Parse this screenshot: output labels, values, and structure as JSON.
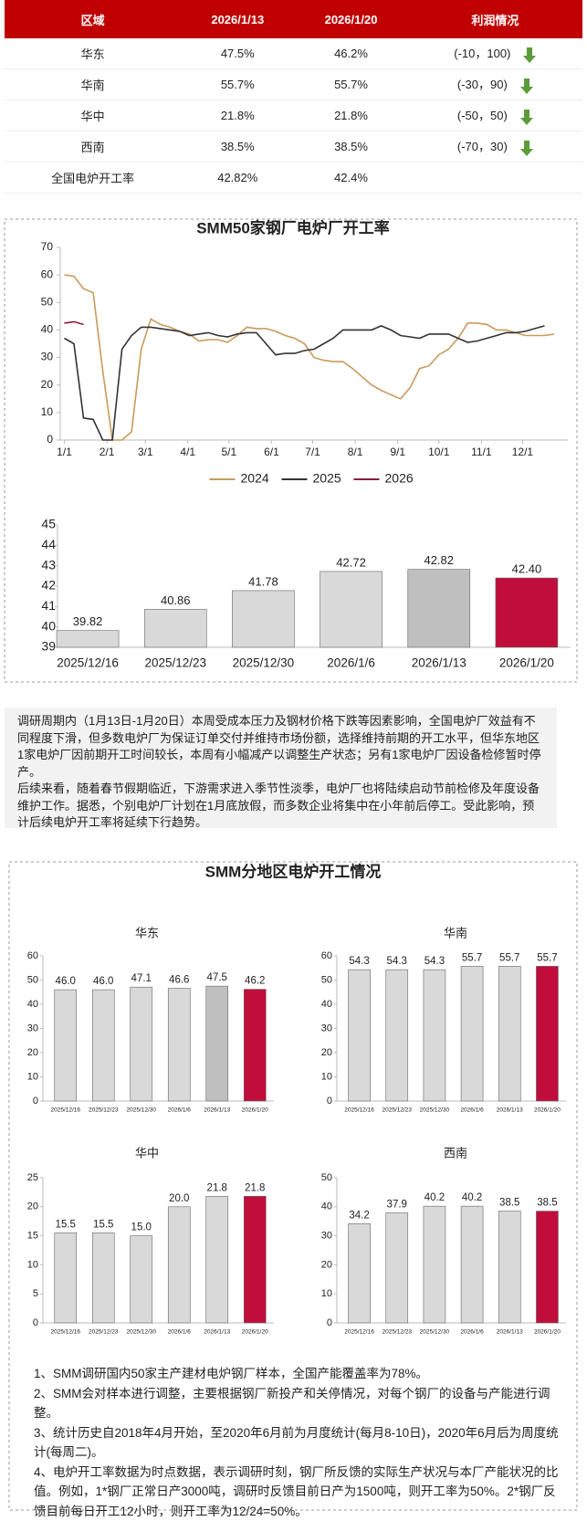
{
  "table": {
    "header": [
      "区域",
      "2026/1/13",
      "2026/1/20",
      "利润情况"
    ],
    "rows": [
      [
        "华东",
        "47.5%",
        "46.2%",
        "(-10，100)"
      ],
      [
        "华南",
        "55.7%",
        "55.7%",
        "(-30，90)"
      ],
      [
        "华中",
        "21.8%",
        "21.8%",
        "(-50，50)"
      ],
      [
        "西南",
        "38.5%",
        "38.5%",
        "(-70，30)"
      ],
      [
        "全国电炉开工率",
        "42.82%",
        "42.4%"
      ]
    ]
  },
  "chart_data": [
    {
      "type": "line",
      "title": "SMM50家钢厂电炉厂开工率",
      "xlim": [
        -3,
        367
      ],
      "xticks": [
        {
          "value": 0,
          "label": "1/1"
        },
        {
          "value": 31,
          "label": "2/1"
        },
        {
          "value": 59,
          "label": "3/1"
        },
        {
          "value": 90,
          "label": "4/1"
        },
        {
          "value": 120,
          "label": "5/1"
        },
        {
          "value": 151,
          "label": "6/1"
        },
        {
          "value": 181,
          "label": "7/1"
        },
        {
          "value": 212,
          "label": "8/1"
        },
        {
          "value": 243,
          "label": "9/1"
        },
        {
          "value": 273,
          "label": "10/1"
        },
        {
          "value": 304,
          "label": "11/1"
        },
        {
          "value": 334,
          "label": "12/1"
        }
      ],
      "ylim": [
        0,
        70
      ],
      "yticks": [
        0,
        10,
        20,
        30,
        40,
        50,
        60,
        70
      ],
      "legend": "bottom",
      "series": [
        {
          "name": "2024",
          "color": "#c99a5b",
          "x": [
            0,
            7,
            14,
            21,
            28,
            35,
            42,
            49,
            56,
            63,
            70,
            77,
            84,
            91,
            98,
            105,
            112,
            119,
            126,
            133,
            140,
            147,
            154,
            161,
            168,
            175,
            182,
            189,
            196,
            203,
            210,
            217,
            224,
            231,
            238,
            245,
            252,
            259,
            266,
            273,
            280,
            287,
            294,
            301,
            308,
            315,
            322,
            329,
            336,
            343,
            350,
            357
          ],
          "values": [
            60,
            59.5,
            55,
            53.5,
            25,
            0,
            0,
            3,
            33,
            44,
            42,
            41,
            39.5,
            38.5,
            36,
            36.5,
            36.5,
            35.5,
            38,
            41,
            40.5,
            40.5,
            39.5,
            38,
            37,
            35,
            30,
            29,
            28.5,
            28.5,
            26,
            23,
            20,
            18,
            16.5,
            15,
            19,
            26,
            27,
            31,
            33,
            37,
            42.5,
            42.5,
            42,
            40,
            40,
            39,
            38,
            38,
            38,
            38.5
          ]
        },
        {
          "name": "2025",
          "color": "#333333",
          "x": [
            0,
            7,
            14,
            21,
            28,
            35,
            42,
            49,
            56,
            63,
            70,
            77,
            84,
            91,
            98,
            105,
            112,
            119,
            126,
            133,
            140,
            147,
            154,
            161,
            168,
            175,
            182,
            189,
            196,
            203,
            210,
            217,
            224,
            231,
            238,
            245,
            252,
            259,
            266,
            273,
            280,
            287,
            294,
            301,
            308,
            315,
            322,
            329,
            336,
            343,
            350
          ],
          "values": [
            37,
            35,
            8,
            7.5,
            0,
            0,
            33,
            38,
            41,
            41,
            40.5,
            40,
            39.5,
            38,
            38.5,
            39,
            38,
            37.5,
            38.5,
            39,
            39,
            35,
            31,
            31.5,
            31.5,
            32.5,
            33,
            35,
            37,
            40,
            40,
            40,
            40,
            41.5,
            40,
            38,
            37.5,
            37,
            38.5,
            38.5,
            38.5,
            37,
            35.5,
            36,
            37,
            38,
            39,
            39,
            39.5,
            40.5,
            41.5
          ]
        },
        {
          "name": "2026",
          "color": "#8b1a3f",
          "x": [
            0,
            7,
            14
          ],
          "values": [
            42.5,
            43,
            42
          ]
        }
      ]
    },
    {
      "type": "bar",
      "categories": [
        "2025/12/16",
        "2025/12/23",
        "2025/12/30",
        "2026/1/6",
        "2026/1/13",
        "2026/1/20"
      ],
      "values": [
        39.82,
        40.86,
        41.78,
        42.72,
        42.82,
        42.4
      ],
      "value_labels": [
        "39.82",
        "40.86",
        "41.78",
        "42.72",
        "42.82",
        "42.40"
      ],
      "colors": [
        "#d9d9d9",
        "#d9d9d9",
        "#d9d9d9",
        "#d9d9d9",
        "#bfbfbf",
        "#c00d3c"
      ],
      "ylim": [
        39,
        45
      ],
      "yticks": [
        39,
        40,
        41,
        42,
        43,
        44,
        45
      ]
    },
    {
      "type": "bar",
      "title": "华东",
      "categories": [
        "2025/12/16",
        "2025/12/23",
        "2025/12/30",
        "2026/1/6",
        "2026/1/13",
        "2026/1/20"
      ],
      "values": [
        46,
        46,
        47.1,
        46.6,
        47.5,
        46.2
      ],
      "value_labels": [
        "46.0",
        "46.0",
        "47.1",
        "46.6",
        "47.5",
        "46.2"
      ],
      "colors": [
        "#d9d9d9",
        "#d9d9d9",
        "#d9d9d9",
        "#d9d9d9",
        "#bfbfbf",
        "#c00d3c"
      ],
      "ylim": [
        0,
        60
      ],
      "yticks": [
        0,
        10,
        20,
        30,
        40,
        50,
        60
      ]
    },
    {
      "type": "bar",
      "title": "华南",
      "categories": [
        "2025/12/16",
        "2025/12/23",
        "2025/12/30",
        "2026/1/6",
        "2026/1/13",
        "2026/1/20"
      ],
      "values": [
        54.3,
        54.3,
        54.3,
        55.7,
        55.7,
        55.7
      ],
      "colors": [
        "#d9d9d9",
        "#d9d9d9",
        "#d9d9d9",
        "#d9d9d9",
        "#d9d9d9",
        "#c00d3c"
      ],
      "ylim": [
        0,
        60
      ],
      "yticks": [
        0,
        10,
        20,
        30,
        40,
        50,
        60
      ]
    },
    {
      "type": "bar",
      "title": "华中",
      "categories": [
        "2025/12/16",
        "2025/12/23",
        "2025/12/30",
        "2026/1/6",
        "2026/1/13",
        "2026/1/20"
      ],
      "values": [
        15.5,
        15.5,
        15,
        20,
        21.8,
        21.8
      ],
      "value_labels": [
        "15.5",
        "15.5",
        "15.0",
        "20.0",
        "21.8",
        "21.8"
      ],
      "colors": [
        "#d9d9d9",
        "#d9d9d9",
        "#d9d9d9",
        "#d9d9d9",
        "#d9d9d9",
        "#c00d3c"
      ],
      "ylim": [
        0,
        25
      ],
      "yticks": [
        0,
        5,
        10,
        15,
        20,
        25
      ]
    },
    {
      "type": "bar",
      "title": "西南",
      "categories": [
        "2025/12/16",
        "2025/12/23",
        "2025/12/30",
        "2026/1/6",
        "2026/1/13",
        "2026/1/20"
      ],
      "values": [
        34.2,
        37.9,
        40.2,
        40.2,
        38.5,
        38.5
      ],
      "colors": [
        "#d9d9d9",
        "#d9d9d9",
        "#d9d9d9",
        "#d9d9d9",
        "#d9d9d9",
        "#c00d3c"
      ],
      "ylim": [
        0,
        50
      ],
      "yticks": [
        0,
        10,
        20,
        30,
        40,
        50
      ]
    }
  ],
  "commentary": [
    "调研周期内（1月13日-1月20日）本周受成本压力及钢材价格下跌等因素影响，全国电炉厂效益有不同程度下滑，但多数电炉厂为保证订单交付并维持市场份额，选择维持前期的开工水平，但华东地区1家电炉厂因前期开工时间较长，本周有小幅减产以调整生产状态；另有1家电炉厂因设备检修暂时停产。",
    "后续来看，随着春节假期临近，下游需求进入季节性淡季，电炉厂也将陆续启动节前检修及年度设备维护工作。据悉，个别电炉厂计划在1月底放假，而多数企业将集中在小年前后停工。受此影响，预计后续电炉开工率将延续下行趋势。"
  ],
  "regional_title": "SMM分地区电炉开工情况",
  "notes": [
    "1、SMM调研国内50家主产建材电炉钢厂样本，全国产能覆盖率为78%。",
    "2、SMM会对样本进行调整，主要根据钢厂新投产和关停情况，对每个钢厂的设备与产能进行调整。",
    "3、统计历史自2018年4月开始，至2020年6月前为月度统计(每月8-10日)，2020年6月后为周度统计(每周二)。",
    "4、电炉开工率数据为时点数据，表示调研时刻，钢厂所反馈的实际生产状况与本厂产能状况的比值。例如，1*钢厂正常日产3000吨，调研时反馈目前日产为1500吨，则开工率为50%。2*钢厂反馈目前每日开工12小时，则开工率为12/24=50%。"
  ]
}
